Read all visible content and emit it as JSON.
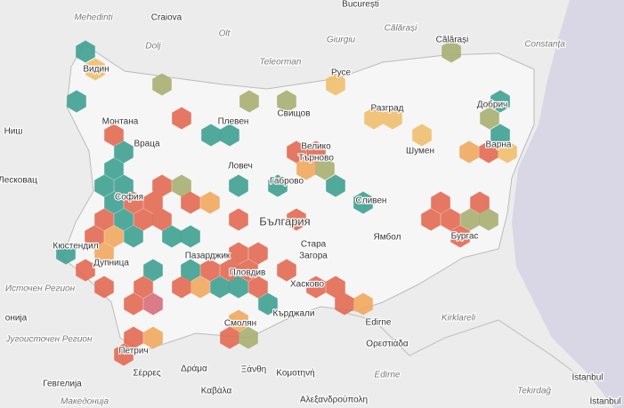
{
  "map": {
    "labels": [
      "București",
      "Craiova",
      "Mehedinti",
      "Călărași",
      "Dolj",
      "Olt",
      "Giurgiu",
      "Constanța",
      "Călărași",
      "Teleorman",
      "Видин",
      "Русе",
      "Свищов",
      "Монтана",
      "Плевен",
      "Разград",
      "Добрич",
      "Ниш",
      "Враца",
      "Велико",
      "Търново",
      "Шумен",
      "Варна",
      "Ловеч",
      "Лесковац",
      "Габрово",
      "София",
      "Сливен",
      "България",
      "Стара",
      "Загора",
      "Ямбол",
      "Бургас",
      "Кюстендил",
      "Дупница",
      "Пазарджик",
      "Пловдив",
      "Хасково",
      "Источен Регион",
      "онија",
      "Смолян",
      "Кърджали",
      "Edirne",
      "Kirklareli",
      "Југоисточен Регион",
      "Ορεστιάδα",
      "Петрич",
      "Σέρρες",
      "Δράμα",
      "Ξάνθη",
      "Κομοτηνή",
      "Гевгелија",
      "Καβάλα",
      "Edirne",
      "Tekirdağ",
      "İstanbul",
      "İstanbul",
      "Македонија",
      "Αλεξανδρούπολη"
    ]
  }
}
